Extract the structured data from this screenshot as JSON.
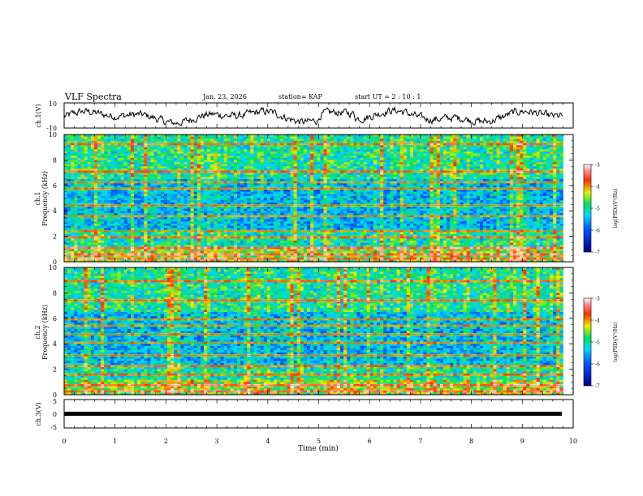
{
  "header": {
    "title": "VLF Spectra",
    "date": "Jan. 23, 2026",
    "station": "station= KAP",
    "start_time": "start UT =  2 : 10 : 1"
  },
  "chart_data": [
    {
      "type": "line",
      "name": "ch1-waveform",
      "ylabel": "ch.1(V)",
      "ylim": [
        -10,
        10
      ],
      "y_tick_labels": [
        "-10",
        "10"
      ],
      "xlim": [
        0,
        10
      ],
      "description_values": "noisy amplitude trace between about -6 and 8 V, peaks near t=5.1-5.6 min"
    },
    {
      "type": "heatmap",
      "name": "ch1-spectrogram",
      "ylabel_lines": [
        "ch.1",
        "Frequency (kHz)"
      ],
      "ylim": [
        0,
        10
      ],
      "y_tick_labels": [
        "0",
        "2",
        "4",
        "6",
        "8",
        "10"
      ],
      "xlim": [
        0,
        10
      ],
      "data_end_min": 9.8
    },
    {
      "type": "heatmap",
      "name": "ch2-spectrogram",
      "ylabel_lines": [
        "ch.2",
        "Frequency (kHz)"
      ],
      "ylim": [
        0,
        10
      ],
      "y_tick_labels": [
        "0",
        "2",
        "4",
        "6",
        "8",
        "10"
      ],
      "xlim": [
        0,
        10
      ],
      "data_end_min": 9.8
    },
    {
      "type": "line",
      "name": "ch3-waveform",
      "ylabel": "ch.3(V)",
      "ylim": [
        -5,
        5
      ],
      "y_tick_labels": [
        "-5",
        "0",
        "5"
      ],
      "xlim": [
        0,
        10
      ],
      "constant_value": 0
    }
  ],
  "x_axis": {
    "label": "Time (min)",
    "tick_labels": [
      "0",
      "1",
      "2",
      "3",
      "4",
      "5",
      "6",
      "7",
      "8",
      "9",
      "10"
    ]
  },
  "colorbars": [
    {
      "label": "log(PSD)(V²/Hz)",
      "range": [
        -7,
        -3
      ],
      "tick_labels": [
        "-3",
        "-4",
        "-5",
        "-6",
        "-7"
      ]
    },
    {
      "label": "log(PSD)(V²/Hz)",
      "range": [
        -7,
        -3
      ],
      "tick_labels": [
        "-3",
        "-4",
        "-5",
        "-6",
        "-7"
      ]
    }
  ],
  "colors": {
    "low": "#0000cc",
    "mid": "#00dd66",
    "high": "#ff0000",
    "top": "#ffffff"
  }
}
